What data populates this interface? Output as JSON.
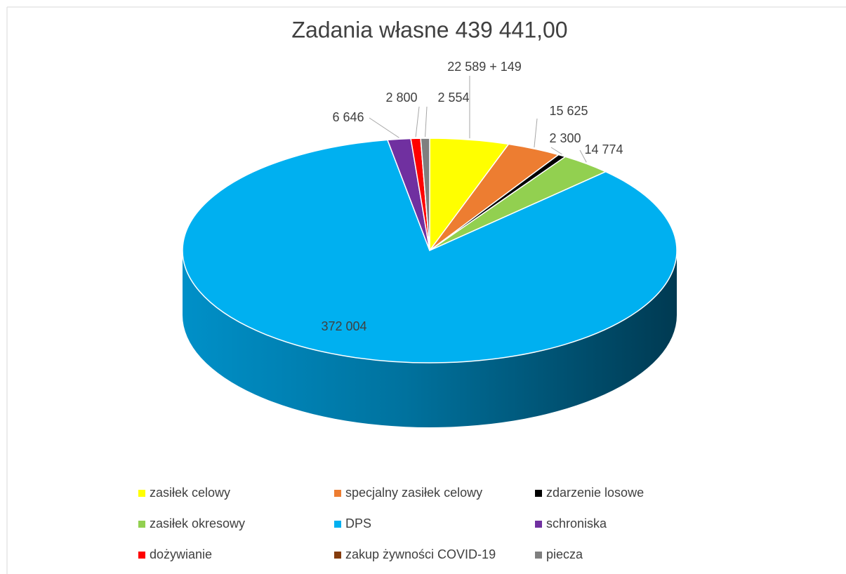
{
  "chart_data": {
    "type": "pie",
    "title": "Zadania własne  439 441,00",
    "categories": [
      "zasiłek celowy",
      "specjalny zasiłek celowy",
      "zdarzenie losowe",
      "zasiłek okresowy",
      "DPS",
      "schroniska",
      "dożywianie",
      "zakup żywności COVID-19",
      "piecza"
    ],
    "values": [
      22738,
      15625,
      2300,
      14774,
      372004,
      6646,
      2800,
      0,
      2554
    ],
    "value_labels": [
      "22 589 + 149",
      "15 625",
      "2 300",
      "14 774",
      "372 004",
      "6 646",
      "2 800",
      null,
      "2 554"
    ],
    "colors": [
      "#ffff00",
      "#ed7d31",
      "#000000",
      "#92d050",
      "#00b0f0",
      "#7030a0",
      "#ff0000",
      "#843c0c",
      "#7f7f7f"
    ],
    "legend": "bottom"
  }
}
